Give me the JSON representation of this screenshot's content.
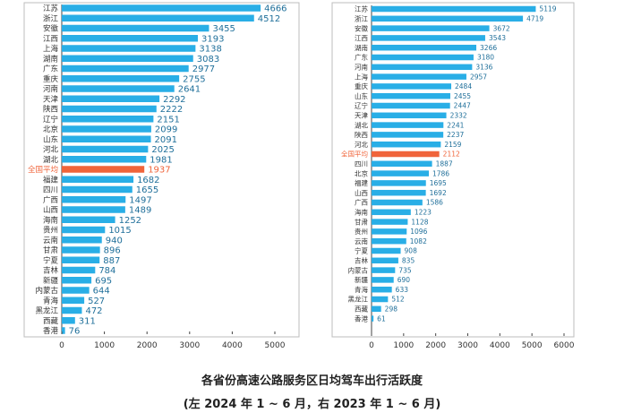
{
  "figure": {
    "title": "各省份高速公路服务区日均驾车出行活跃度",
    "subtitle": "(左 2024 年 1 ~ 6 月，右 2023 年 1 ~ 6 月)"
  },
  "colors": {
    "bar": "#29aee6",
    "highlight": "#f0643a",
    "axis": "#444444",
    "text": "#333333",
    "frame": "#bdbdbd"
  },
  "chart_data": [
    {
      "type": "bar",
      "orientation": "horizontal",
      "period": "2024年1~6月",
      "highlight": "全国平均",
      "categories": [
        "江苏",
        "浙江",
        "安徽",
        "江西",
        "上海",
        "湖南",
        "广东",
        "重庆",
        "河南",
        "天津",
        "陕西",
        "辽宁",
        "北京",
        "山东",
        "河北",
        "湖北",
        "全国平均",
        "福建",
        "四川",
        "广西",
        "山西",
        "海南",
        "贵州",
        "云南",
        "甘肃",
        "宁夏",
        "吉林",
        "新疆",
        "内蒙古",
        "青海",
        "黑龙江",
        "西藏",
        "香港"
      ],
      "values": [
        4666,
        4512,
        3455,
        3193,
        3138,
        3083,
        2977,
        2755,
        2641,
        2292,
        2222,
        2151,
        2099,
        2091,
        2025,
        1981,
        1937,
        1682,
        1655,
        1497,
        1489,
        1252,
        1015,
        940,
        896,
        887,
        784,
        695,
        644,
        527,
        472,
        311,
        76
      ],
      "xlim": [
        0,
        5000
      ],
      "xticks": [
        0,
        1000,
        2000,
        3000,
        4000,
        5000
      ],
      "xlabel": "",
      "ylabel": ""
    },
    {
      "type": "bar",
      "orientation": "horizontal",
      "period": "2023年1~6月",
      "highlight": "全国平均",
      "categories": [
        "江苏",
        "浙江",
        "安徽",
        "江西",
        "湖南",
        "广东",
        "河南",
        "上海",
        "重庆",
        "山东",
        "辽宁",
        "天津",
        "湖北",
        "陕西",
        "河北",
        "全国平均",
        "四川",
        "北京",
        "福建",
        "山西",
        "广西",
        "海南",
        "甘肃",
        "贵州",
        "云南",
        "宁夏",
        "吉林",
        "内蒙古",
        "新疆",
        "青海",
        "黑龙江",
        "西藏",
        "香港"
      ],
      "values": [
        5119,
        4719,
        3672,
        3543,
        3266,
        3180,
        3136,
        2957,
        2484,
        2455,
        2447,
        2332,
        2241,
        2237,
        2159,
        2112,
        1887,
        1786,
        1695,
        1692,
        1586,
        1223,
        1128,
        1096,
        1082,
        908,
        835,
        735,
        690,
        633,
        512,
        298,
        61
      ],
      "xlim": [
        0,
        6000
      ],
      "xticks": [
        0,
        1000,
        2000,
        3000,
        4000,
        5000,
        6000
      ],
      "xlabel": "",
      "ylabel": ""
    }
  ]
}
